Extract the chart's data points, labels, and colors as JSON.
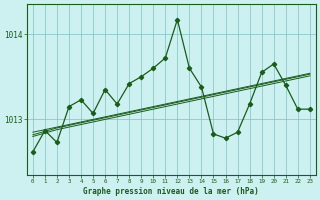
{
  "title": "Graphe pression niveau de la mer (hPa)",
  "bg_color": "#cdf0f0",
  "line_color": "#1a5c1a",
  "grid_color": "#80c0c0",
  "x_values": [
    0,
    1,
    2,
    3,
    4,
    5,
    6,
    7,
    8,
    9,
    10,
    11,
    12,
    13,
    14,
    15,
    16,
    17,
    18,
    19,
    20,
    21,
    22,
    23
  ],
  "main_series": [
    1012.62,
    1012.87,
    1012.73,
    1013.15,
    1013.23,
    1013.07,
    1013.35,
    1013.18,
    1013.42,
    1013.5,
    1013.6,
    1013.72,
    1014.17,
    1013.6,
    1013.38,
    1012.83,
    1012.78,
    1012.85,
    1013.18,
    1013.55,
    1013.65,
    1013.4,
    1013.12,
    1013.12
  ],
  "trend1": [
    1012.85,
    1012.88,
    1012.91,
    1012.94,
    1012.97,
    1013.0,
    1013.03,
    1013.06,
    1013.09,
    1013.12,
    1013.15,
    1013.18,
    1013.21,
    1013.24,
    1013.27,
    1013.3,
    1013.33,
    1013.36,
    1013.39,
    1013.42,
    1013.45,
    1013.48,
    1013.51,
    1013.54
  ],
  "trend2": [
    1012.82,
    1012.86,
    1012.9,
    1012.93,
    1012.96,
    1012.99,
    1013.02,
    1013.05,
    1013.08,
    1013.11,
    1013.14,
    1013.17,
    1013.2,
    1013.23,
    1013.26,
    1013.29,
    1013.32,
    1013.35,
    1013.38,
    1013.41,
    1013.44,
    1013.47,
    1013.5,
    1013.53
  ],
  "trend3": [
    1012.8,
    1012.84,
    1012.88,
    1012.91,
    1012.94,
    1012.97,
    1013.0,
    1013.03,
    1013.06,
    1013.09,
    1013.12,
    1013.15,
    1013.18,
    1013.21,
    1013.24,
    1013.27,
    1013.3,
    1013.33,
    1013.36,
    1013.39,
    1013.42,
    1013.45,
    1013.48,
    1013.51
  ],
  "yticks": [
    1013,
    1014
  ],
  "ylim": [
    1012.35,
    1014.35
  ],
  "xlim": [
    -0.5,
    23.5
  ]
}
